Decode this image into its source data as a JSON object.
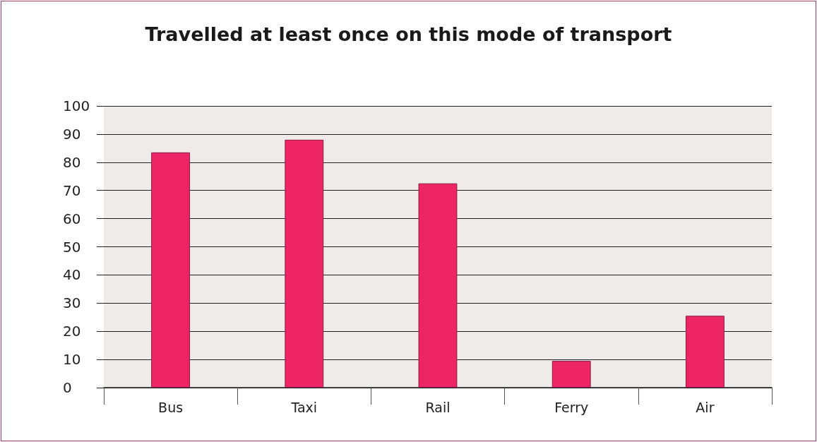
{
  "chart_data": {
    "type": "bar",
    "title": "Travelled at least once on this mode of transport",
    "categories": [
      "Bus",
      "Taxi",
      "Rail",
      "Ferry",
      "Air"
    ],
    "values": [
      83.5,
      88,
      72.5,
      9.5,
      25.5
    ],
    "color": "#ee2564",
    "ylim": [
      0,
      100
    ],
    "yticks": [
      0,
      10,
      20,
      30,
      40,
      50,
      60,
      70,
      80,
      90,
      100
    ],
    "grid": true
  }
}
